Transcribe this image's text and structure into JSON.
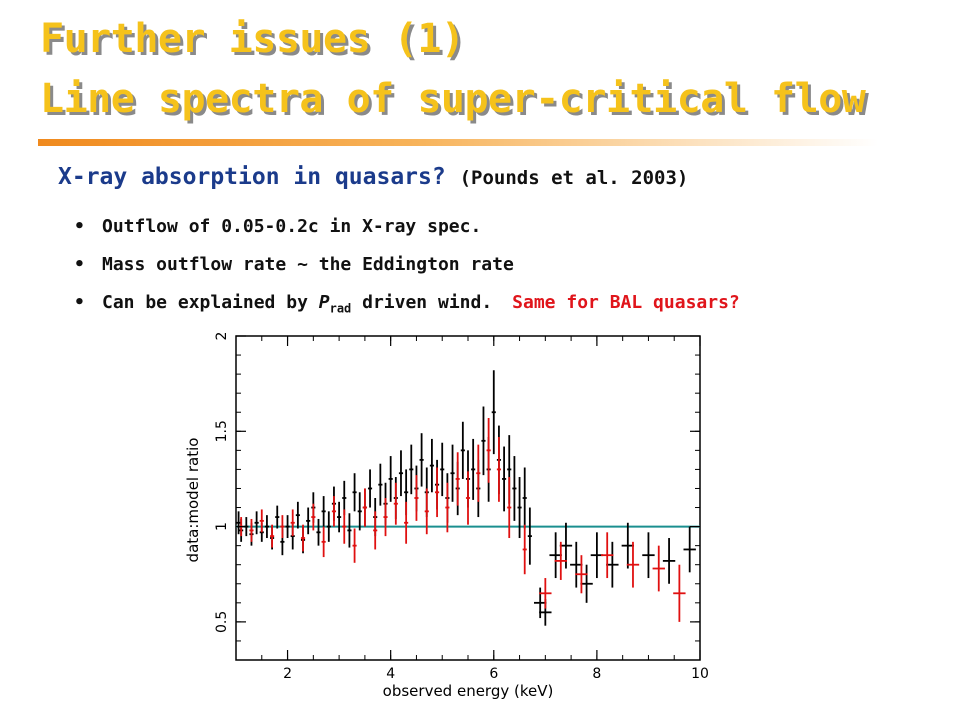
{
  "slide": {
    "title_line1": "Further issues (1)",
    "title_line2": "Line spectra of super-critical flow",
    "subheading": "X-ray absorption in quasars?",
    "reference": "(Pounds et al. 2003)",
    "bullets": [
      {
        "text": "Outflow of 0.05-0.2c in X-ray spec."
      },
      {
        "text": "Mass outflow rate ~ the Eddington rate"
      },
      {
        "pre": "Can be explained by ",
        "italic": "P",
        "sub": "rad",
        "post": " driven wind.",
        "note": "Same for BAL quasars?"
      }
    ]
  },
  "chart_data": {
    "type": "scatter",
    "title": "",
    "xlabel": "observed energy (keV)",
    "ylabel": "data:model ratio",
    "xlim": [
      1.0,
      10.0
    ],
    "ylim": [
      0.3,
      2.0
    ],
    "xticks": [
      "2",
      "4",
      "6",
      "8",
      "10"
    ],
    "yticks": [
      "0.5",
      "1",
      "1.5",
      "2"
    ],
    "reference_line": {
      "y": 1.0,
      "color": "#1a8f8f"
    },
    "colors": {
      "black_series": "#000000",
      "red_series": "#e01010"
    },
    "series": [
      {
        "color": "black",
        "points": [
          [
            1.05,
            1.02,
            0.06
          ],
          [
            1.1,
            0.98,
            0.06
          ],
          [
            1.2,
            1.0,
            0.05
          ],
          [
            1.3,
            0.96,
            0.06
          ],
          [
            1.4,
            1.02,
            0.06
          ],
          [
            1.5,
            0.97,
            0.05
          ],
          [
            1.6,
            1.0,
            0.06
          ],
          [
            1.7,
            0.94,
            0.06
          ],
          [
            1.8,
            1.05,
            0.06
          ],
          [
            1.9,
            0.92,
            0.07
          ],
          [
            2.0,
            1.0,
            0.06
          ],
          [
            2.1,
            0.95,
            0.07
          ],
          [
            2.2,
            1.06,
            0.07
          ],
          [
            2.3,
            0.93,
            0.07
          ],
          [
            2.4,
            1.03,
            0.07
          ],
          [
            2.5,
            1.1,
            0.08
          ],
          [
            2.6,
            0.97,
            0.07
          ],
          [
            2.7,
            1.08,
            0.08
          ],
          [
            2.8,
            1.0,
            0.08
          ],
          [
            2.9,
            1.12,
            0.09
          ],
          [
            3.0,
            1.05,
            0.08
          ],
          [
            3.1,
            1.15,
            0.09
          ],
          [
            3.2,
            0.98,
            0.09
          ],
          [
            3.3,
            1.18,
            0.1
          ],
          [
            3.4,
            1.08,
            0.1
          ],
          [
            3.5,
            1.1,
            0.1
          ],
          [
            3.6,
            1.2,
            0.1
          ],
          [
            3.7,
            1.05,
            0.1
          ],
          [
            3.8,
            1.22,
            0.11
          ],
          [
            3.9,
            1.12,
            0.11
          ],
          [
            4.0,
            1.25,
            0.12
          ],
          [
            4.1,
            1.15,
            0.11
          ],
          [
            4.2,
            1.28,
            0.12
          ],
          [
            4.3,
            1.18,
            0.12
          ],
          [
            4.4,
            1.3,
            0.13
          ],
          [
            4.5,
            1.2,
            0.12
          ],
          [
            4.6,
            1.35,
            0.14
          ],
          [
            4.7,
            1.18,
            0.13
          ],
          [
            4.8,
            1.32,
            0.14
          ],
          [
            4.9,
            1.22,
            0.13
          ],
          [
            5.0,
            1.3,
            0.14
          ],
          [
            5.1,
            1.15,
            0.13
          ],
          [
            5.2,
            1.28,
            0.15
          ],
          [
            5.3,
            1.2,
            0.14
          ],
          [
            5.4,
            1.4,
            0.15
          ],
          [
            5.5,
            1.25,
            0.15
          ],
          [
            5.6,
            1.3,
            0.16
          ],
          [
            5.7,
            1.2,
            0.15
          ],
          [
            5.8,
            1.45,
            0.18
          ],
          [
            5.9,
            1.3,
            0.17
          ],
          [
            6.0,
            1.6,
            0.22
          ],
          [
            6.1,
            1.35,
            0.18
          ],
          [
            6.2,
            1.25,
            0.17
          ],
          [
            6.3,
            1.3,
            0.18
          ],
          [
            6.4,
            1.2,
            0.17
          ],
          [
            6.5,
            1.1,
            0.16
          ],
          [
            6.6,
            1.15,
            0.16
          ],
          [
            6.7,
            0.95,
            0.15
          ],
          [
            6.9,
            0.6,
            0.08
          ],
          [
            7.0,
            0.55,
            0.07
          ],
          [
            7.2,
            0.85,
            0.12
          ],
          [
            7.4,
            0.9,
            0.12
          ],
          [
            7.6,
            0.8,
            0.12
          ],
          [
            7.8,
            0.7,
            0.1
          ],
          [
            8.0,
            0.85,
            0.12
          ],
          [
            8.3,
            0.8,
            0.12
          ],
          [
            8.6,
            0.9,
            0.12
          ],
          [
            9.0,
            0.85,
            0.12
          ],
          [
            9.4,
            0.82,
            0.12
          ],
          [
            9.8,
            0.88,
            0.12
          ]
        ]
      },
      {
        "color": "red",
        "points": [
          [
            1.1,
            1.0,
            0.05
          ],
          [
            1.3,
            0.98,
            0.06
          ],
          [
            1.5,
            1.03,
            0.06
          ],
          [
            1.7,
            0.95,
            0.06
          ],
          [
            1.9,
            1.0,
            0.06
          ],
          [
            2.1,
            1.02,
            0.07
          ],
          [
            2.3,
            0.94,
            0.07
          ],
          [
            2.5,
            1.05,
            0.07
          ],
          [
            2.7,
            0.92,
            0.08
          ],
          [
            2.9,
            1.08,
            0.08
          ],
          [
            3.1,
            1.0,
            0.09
          ],
          [
            3.3,
            0.9,
            0.09
          ],
          [
            3.5,
            1.1,
            0.1
          ],
          [
            3.7,
            0.98,
            0.1
          ],
          [
            3.9,
            1.05,
            0.1
          ],
          [
            4.1,
            1.12,
            0.11
          ],
          [
            4.3,
            1.02,
            0.11
          ],
          [
            4.5,
            1.15,
            0.12
          ],
          [
            4.7,
            1.08,
            0.12
          ],
          [
            4.9,
            1.18,
            0.13
          ],
          [
            5.1,
            1.1,
            0.13
          ],
          [
            5.3,
            1.25,
            0.14
          ],
          [
            5.5,
            1.15,
            0.14
          ],
          [
            5.7,
            1.28,
            0.15
          ],
          [
            5.9,
            1.4,
            0.17
          ],
          [
            6.1,
            1.3,
            0.17
          ],
          [
            6.3,
            1.1,
            0.16
          ],
          [
            6.6,
            0.88,
            0.13
          ],
          [
            7.0,
            0.65,
            0.08
          ],
          [
            7.3,
            0.82,
            0.1
          ],
          [
            7.7,
            0.75,
            0.1
          ],
          [
            8.2,
            0.85,
            0.12
          ],
          [
            8.7,
            0.8,
            0.12
          ],
          [
            9.2,
            0.78,
            0.12
          ],
          [
            9.6,
            0.65,
            0.15
          ]
        ]
      }
    ]
  }
}
